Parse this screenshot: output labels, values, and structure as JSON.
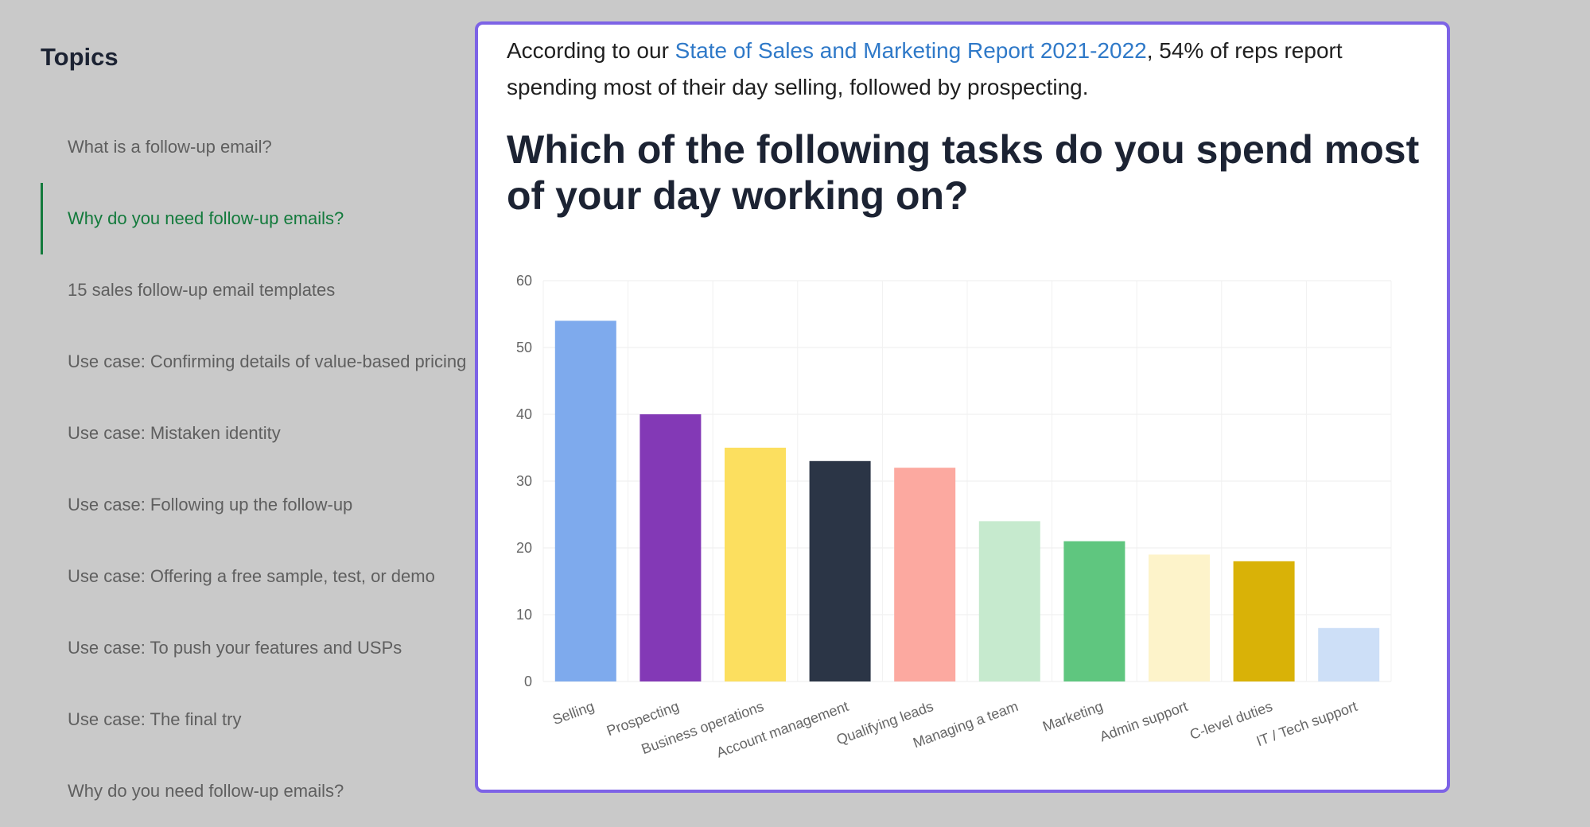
{
  "sidebar": {
    "title": "Topics",
    "items": [
      {
        "label": "What is a follow-up email?",
        "active": false
      },
      {
        "label": "Why do you need follow-up emails?",
        "active": true
      },
      {
        "label": "15 sales follow-up email templates",
        "active": false
      },
      {
        "label": "Use case: Confirming details of value-based pricing",
        "active": false
      },
      {
        "label": "Use case: Mistaken identity",
        "active": false
      },
      {
        "label": "Use case: Following up the follow-up",
        "active": false
      },
      {
        "label": "Use case: Offering a free sample, test, or demo",
        "active": false
      },
      {
        "label": "Use case: To push your features and USPs",
        "active": false
      },
      {
        "label": "Use case: The final try",
        "active": false
      },
      {
        "label": "Why do you need follow-up emails?",
        "active": false
      }
    ]
  },
  "article": {
    "intro_prefix": "According to our ",
    "intro_link": "State of Sales and Marketing Report 2021-2022",
    "intro_suffix": ", 54% of reps report spending most of their day selling, followed by prospecting.",
    "question": "Which of the following tasks do you spend most of your day working on?"
  },
  "colors": {
    "accent": "#7d63e6",
    "active_topic": "#137a3c",
    "link": "#2f79c8"
  },
  "chart_data": {
    "type": "bar",
    "title": "",
    "xlabel": "",
    "ylabel": "",
    "ylim": [
      0,
      60
    ],
    "yticks": [
      0,
      10,
      20,
      30,
      40,
      50,
      60
    ],
    "grid": true,
    "categories": [
      "Selling",
      "Prospecting",
      "Business operations",
      "Account management",
      "Qualifying leads",
      "Managing a team",
      "Marketing",
      "Admin support",
      "C-level duties",
      "IT / Tech support"
    ],
    "values": [
      54,
      40,
      35,
      33,
      32,
      24,
      21,
      19,
      18,
      8
    ],
    "colors": [
      "#7eaaed",
      "#8339b6",
      "#fcdf5f",
      "#2b3546",
      "#fca9a0",
      "#c6eace",
      "#5fc67f",
      "#fdf3ca",
      "#d9b207",
      "#cddff7"
    ]
  }
}
